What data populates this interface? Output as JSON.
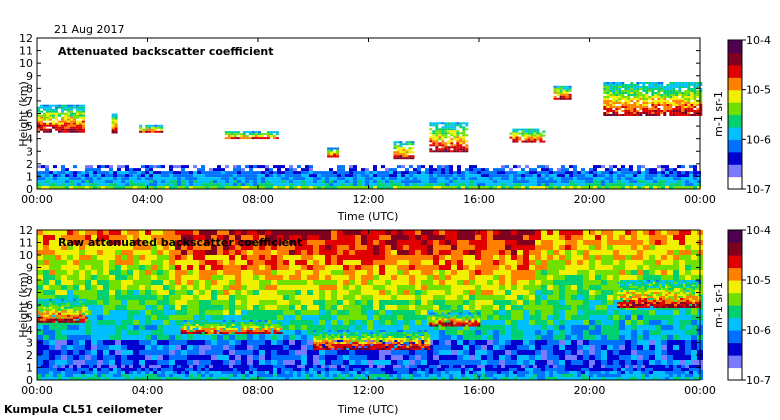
{
  "date": "21 Aug 2017",
  "footer": "Kumpula CL51 ceilometer",
  "chart_data": [
    {
      "type": "heatmap",
      "title": "Attenuated backscatter coefficient",
      "xlabel": "Time (UTC)",
      "ylabel": "Height (km)",
      "xticks": [
        "00:00",
        "04:00",
        "08:00",
        "12:00",
        "16:00",
        "20:00",
        "00:00"
      ],
      "yticks": [
        "0",
        "1",
        "2",
        "3",
        "4",
        "5",
        "6",
        "7",
        "8",
        "9",
        "10",
        "11",
        "12"
      ],
      "xlim_hours": [
        0,
        24
      ],
      "ylim_km": [
        0,
        12
      ],
      "colorbar": {
        "scale": "log",
        "ticks": [
          "10-7",
          "10-6",
          "10-5",
          "10-4"
        ],
        "label": "m-1 sr-1",
        "colors": [
          "#ffffff",
          "#7a7aff",
          "#0000d0",
          "#0070ff",
          "#00c0ff",
          "#00d070",
          "#70e000",
          "#f0f000",
          "#ff8000",
          "#e00000",
          "#800020",
          "#500050"
        ]
      },
      "layers": [
        {
          "name": "boundary layer",
          "start_h": 0.0,
          "end_h": 24.0,
          "base_km": 0.0,
          "top_km": 1.9
        },
        {
          "name": "cloud 1",
          "start_h": 0.0,
          "end_h": 1.7,
          "base_km": 4.6,
          "top_km": 6.7
        },
        {
          "name": "cloud 2",
          "start_h": 2.7,
          "end_h": 2.9,
          "base_km": 4.5,
          "top_km": 6.0
        },
        {
          "name": "cloud 3",
          "start_h": 3.7,
          "end_h": 4.5,
          "base_km": 4.5,
          "top_km": 5.1
        },
        {
          "name": "cloud 4",
          "start_h": 6.8,
          "end_h": 8.7,
          "base_km": 4.0,
          "top_km": 4.6
        },
        {
          "name": "cloud 5",
          "start_h": 10.5,
          "end_h": 10.9,
          "base_km": 2.6,
          "top_km": 3.3
        },
        {
          "name": "cloud 6",
          "start_h": 12.9,
          "end_h": 13.6,
          "base_km": 2.4,
          "top_km": 3.8
        },
        {
          "name": "cloud 7",
          "start_h": 14.2,
          "end_h": 15.6,
          "base_km": 3.0,
          "top_km": 5.3
        },
        {
          "name": "cloud 8",
          "start_h": 17.1,
          "end_h": 18.4,
          "base_km": 3.8,
          "top_km": 4.8
        },
        {
          "name": "cloud 9",
          "start_h": 18.7,
          "end_h": 19.3,
          "base_km": 7.2,
          "top_km": 8.2
        },
        {
          "name": "cloud 10",
          "start_h": 20.5,
          "end_h": 24.0,
          "base_km": 5.8,
          "top_km": 8.5
        }
      ]
    },
    {
      "type": "heatmap",
      "title": "Raw attenuated backscatter coefficient",
      "xlabel": "Time (UTC)",
      "ylabel": "Height (km)",
      "xticks": [
        "00:00",
        "04:00",
        "08:00",
        "12:00",
        "16:00",
        "20:00",
        "00:00"
      ],
      "yticks": [
        "0",
        "1",
        "2",
        "3",
        "4",
        "5",
        "6",
        "7",
        "8",
        "9",
        "10",
        "11",
        "12"
      ],
      "xlim_hours": [
        0,
        24
      ],
      "ylim_km": [
        0,
        12
      ],
      "colorbar": {
        "scale": "log",
        "ticks": [
          "10-7",
          "10-6",
          "10-5",
          "10-4"
        ],
        "label": "m-1 sr-1",
        "colors": [
          "#ffffff",
          "#7a7aff",
          "#0000d0",
          "#0070ff",
          "#00c0ff",
          "#00d070",
          "#70e000",
          "#f0f000",
          "#ff8000",
          "#e00000",
          "#800020",
          "#500050"
        ]
      },
      "layers": [
        {
          "name": "boundary layer",
          "start_h": 0.0,
          "end_h": 24.0,
          "base_km": 0.0,
          "top_km": 1.2
        },
        {
          "name": "cloud 1",
          "start_h": 0.0,
          "end_h": 1.8,
          "base_km": 4.6,
          "top_km": 6.5
        },
        {
          "name": "cloud 4",
          "start_h": 5.2,
          "end_h": 8.8,
          "base_km": 3.7,
          "top_km": 4.8
        },
        {
          "name": "cloud 6",
          "start_h": 10.0,
          "end_h": 14.2,
          "base_km": 2.5,
          "top_km": 4.0
        },
        {
          "name": "cloud 7",
          "start_h": 14.2,
          "end_h": 16.0,
          "base_km": 4.4,
          "top_km": 5.4
        },
        {
          "name": "cloud 10",
          "start_h": 21.0,
          "end_h": 24.0,
          "base_km": 5.8,
          "top_km": 8.0
        }
      ]
    }
  ]
}
